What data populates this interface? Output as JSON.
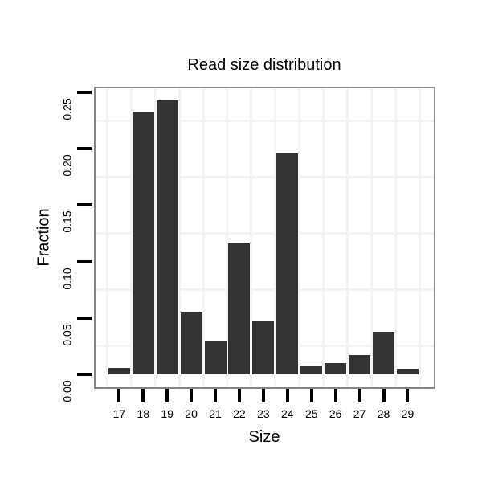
{
  "title": "Read size distribution",
  "chart_data": {
    "type": "bar",
    "title": "Read size distribution",
    "xlabel": "Size",
    "ylabel": "Fraction",
    "categories": [
      "17",
      "18",
      "19",
      "20",
      "21",
      "22",
      "23",
      "24",
      "25",
      "26",
      "27",
      "28",
      "29"
    ],
    "values": [
      0.006,
      0.233,
      0.243,
      0.055,
      0.03,
      0.116,
      0.047,
      0.196,
      0.008,
      0.01,
      0.017,
      0.038,
      0.005
    ],
    "ylim": [
      0,
      0.2543
    ],
    "yticks": [
      0.0,
      0.05,
      0.1,
      0.15,
      0.2,
      0.25
    ],
    "ytick_labels": [
      "0.00",
      "0.05",
      "0.10",
      "0.15",
      "0.20",
      "0.25"
    ],
    "minor_grid_y": [
      0.025,
      0.075,
      0.125,
      0.175,
      0.225
    ],
    "legend": "none",
    "grid": "minor gridlines only, very light gray on white panel",
    "bar_color": "#333333",
    "panel_border_color": "#868686",
    "gridline_color": "#f3f3f3",
    "tick_color": "#000000",
    "background_color": "#ffffff"
  }
}
